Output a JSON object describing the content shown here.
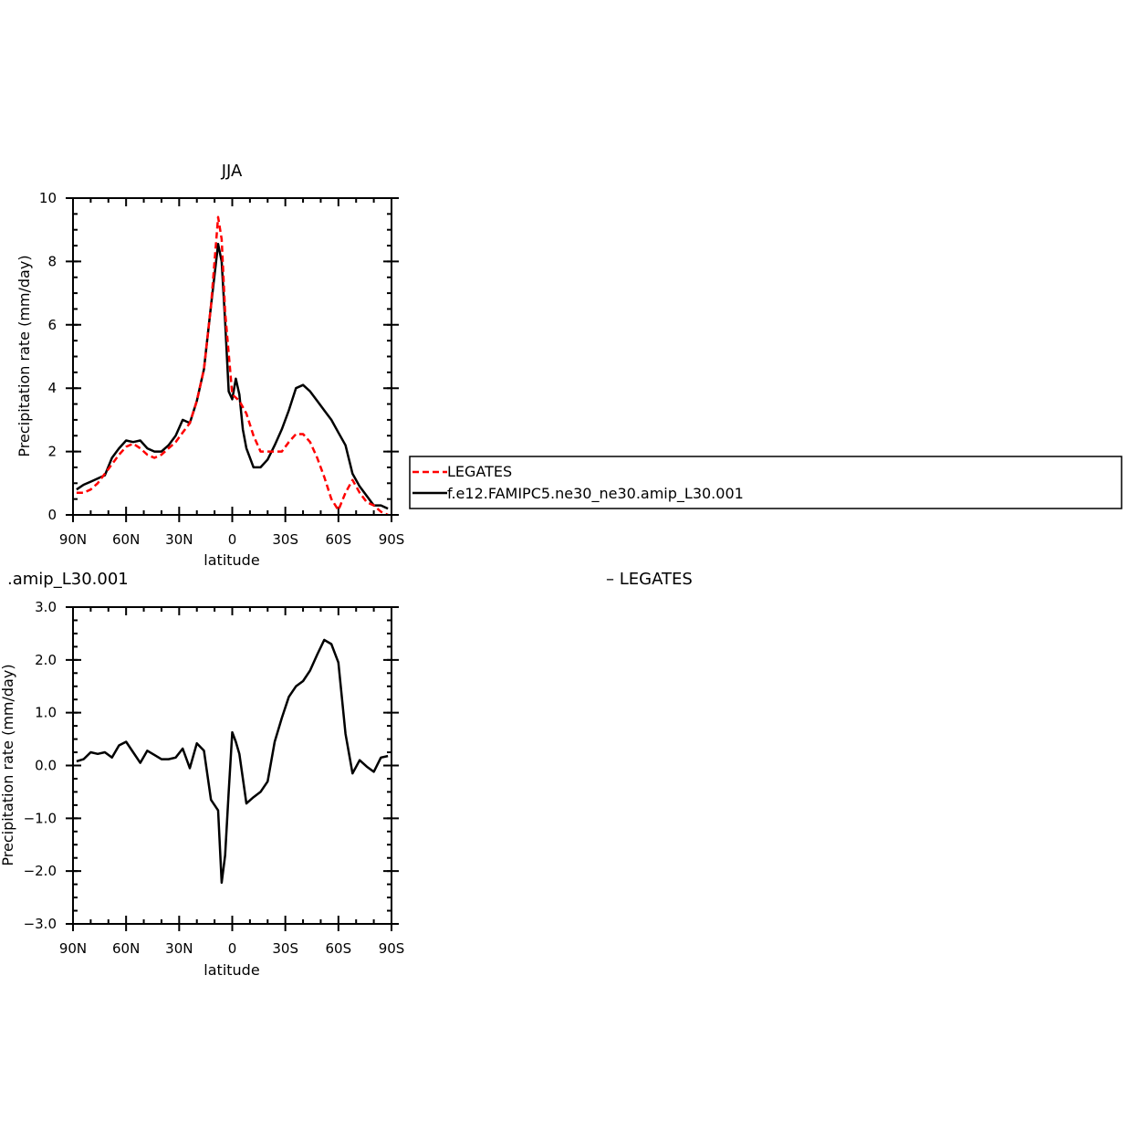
{
  "legend": {
    "entries": [
      {
        "label": "LEGATES",
        "color": "#ff0000",
        "dash": true
      },
      {
        "label": "f.e12.FAMIPC5.ne30_ne30.amip_L30.001",
        "color": "#000000",
        "dash": false
      }
    ]
  },
  "chart_data": [
    {
      "type": "line",
      "title": "JJA",
      "xlabel": "latitude",
      "ylabel": "Precipitation rate (mm/day)",
      "xlim": [
        -90,
        90
      ],
      "ylim": [
        0,
        10
      ],
      "x_ticks": [
        {
          "value": -90,
          "label": "90N"
        },
        {
          "value": -60,
          "label": "60N"
        },
        {
          "value": -30,
          "label": "30N"
        },
        {
          "value": 0,
          "label": "0"
        },
        {
          "value": 30,
          "label": "30S"
        },
        {
          "value": 60,
          "label": "60S"
        },
        {
          "value": 90,
          "label": "90S"
        }
      ],
      "y_ticks": [
        {
          "value": 0,
          "label": "0"
        },
        {
          "value": 2,
          "label": "2"
        },
        {
          "value": 4,
          "label": "4"
        },
        {
          "value": 6,
          "label": "6"
        },
        {
          "value": 8,
          "label": "8"
        },
        {
          "value": 10,
          "label": "10"
        }
      ],
      "series": [
        {
          "name": "LEGATES",
          "color": "#ff0000",
          "dash": true,
          "x": [
            -88,
            -84,
            -80,
            -76,
            -72,
            -68,
            -64,
            -60,
            -56,
            -52,
            -48,
            -44,
            -40,
            -36,
            -32,
            -28,
            -24,
            -20,
            -16,
            -12,
            -8,
            -6,
            -4,
            0,
            4,
            8,
            12,
            16,
            20,
            24,
            28,
            32,
            36,
            40,
            44,
            48,
            52,
            56,
            60,
            64,
            68,
            72,
            76,
            80,
            84,
            88
          ],
          "y": [
            0.7,
            0.7,
            0.8,
            1.0,
            1.3,
            1.6,
            1.9,
            2.15,
            2.25,
            2.1,
            1.9,
            1.8,
            1.9,
            2.1,
            2.3,
            2.6,
            2.9,
            3.6,
            4.6,
            6.6,
            9.4,
            8.7,
            6.4,
            3.8,
            3.6,
            3.2,
            2.5,
            2.0,
            2.0,
            2.0,
            2.0,
            2.3,
            2.55,
            2.55,
            2.3,
            1.8,
            1.2,
            0.5,
            0.15,
            0.7,
            1.1,
            0.7,
            0.4,
            0.3,
            0.1,
            0.0
          ]
        },
        {
          "name": "f.e12.FAMIPC5.ne30_ne30.amip_L30.001",
          "color": "#000000",
          "dash": false,
          "x": [
            -88,
            -84,
            -80,
            -76,
            -72,
            -68,
            -64,
            -60,
            -56,
            -52,
            -48,
            -44,
            -40,
            -36,
            -32,
            -28,
            -24,
            -20,
            -16,
            -12,
            -8,
            -6,
            -4,
            -2,
            0,
            2,
            4,
            6,
            8,
            12,
            16,
            20,
            24,
            28,
            32,
            36,
            40,
            44,
            48,
            52,
            56,
            60,
            64,
            68,
            72,
            76,
            80,
            84,
            88
          ],
          "y": [
            0.8,
            0.95,
            1.05,
            1.15,
            1.25,
            1.8,
            2.1,
            2.35,
            2.3,
            2.35,
            2.1,
            2.0,
            2.0,
            2.2,
            2.5,
            3.0,
            2.9,
            3.6,
            4.6,
            6.6,
            8.55,
            8.0,
            6.1,
            3.9,
            3.65,
            4.3,
            3.8,
            2.7,
            2.1,
            1.5,
            1.5,
            1.75,
            2.2,
            2.7,
            3.3,
            4.0,
            4.1,
            3.9,
            3.6,
            3.3,
            3.0,
            2.6,
            2.2,
            1.3,
            0.9,
            0.6,
            0.3,
            0.3,
            0.2
          ]
        }
      ]
    },
    {
      "type": "line",
      "title": ".amip_L30.001",
      "title_right": "– LEGATES",
      "xlabel": "latitude",
      "ylabel": "Precipitation rate (mm/day)",
      "xlim": [
        -90,
        90
      ],
      "ylim": [
        -3,
        3
      ],
      "x_ticks": [
        {
          "value": -90,
          "label": "90N"
        },
        {
          "value": -60,
          "label": "60N"
        },
        {
          "value": -30,
          "label": "30N"
        },
        {
          "value": 0,
          "label": "0"
        },
        {
          "value": 30,
          "label": "30S"
        },
        {
          "value": 60,
          "label": "60S"
        },
        {
          "value": 90,
          "label": "90S"
        }
      ],
      "y_ticks": [
        {
          "value": -3,
          "label": "−3.0"
        },
        {
          "value": -2,
          "label": "−2.0"
        },
        {
          "value": -1,
          "label": "−1.0"
        },
        {
          "value": 0,
          "label": "0.0"
        },
        {
          "value": 1,
          "label": "1.0"
        },
        {
          "value": 2,
          "label": "2.0"
        },
        {
          "value": 3,
          "label": "3.0"
        }
      ],
      "series": [
        {
          "color": "#000000",
          "dash": false,
          "x": [
            -88,
            -84,
            -80,
            -76,
            -72,
            -68,
            -64,
            -60,
            -56,
            -52,
            -48,
            -44,
            -40,
            -36,
            -32,
            -28,
            -24,
            -20,
            -16,
            -12,
            -8,
            -6,
            -4,
            -2,
            0,
            2,
            4,
            8,
            12,
            16,
            20,
            24,
            28,
            32,
            36,
            40,
            44,
            48,
            52,
            56,
            60,
            64,
            68,
            72,
            76,
            80,
            84,
            88
          ],
          "y": [
            0.08,
            0.12,
            0.25,
            0.22,
            0.25,
            0.15,
            0.38,
            0.45,
            0.25,
            0.05,
            0.28,
            0.2,
            0.12,
            0.12,
            0.15,
            0.32,
            -0.05,
            0.42,
            0.28,
            -0.65,
            -0.85,
            -2.22,
            -1.7,
            -0.5,
            0.63,
            0.45,
            0.22,
            -0.72,
            -0.6,
            -0.5,
            -0.3,
            0.45,
            0.9,
            1.3,
            1.5,
            1.6,
            1.8,
            2.1,
            2.38,
            2.3,
            1.95,
            0.6,
            -0.15,
            0.1,
            -0.02,
            -0.12,
            0.15,
            0.18
          ]
        }
      ]
    }
  ]
}
